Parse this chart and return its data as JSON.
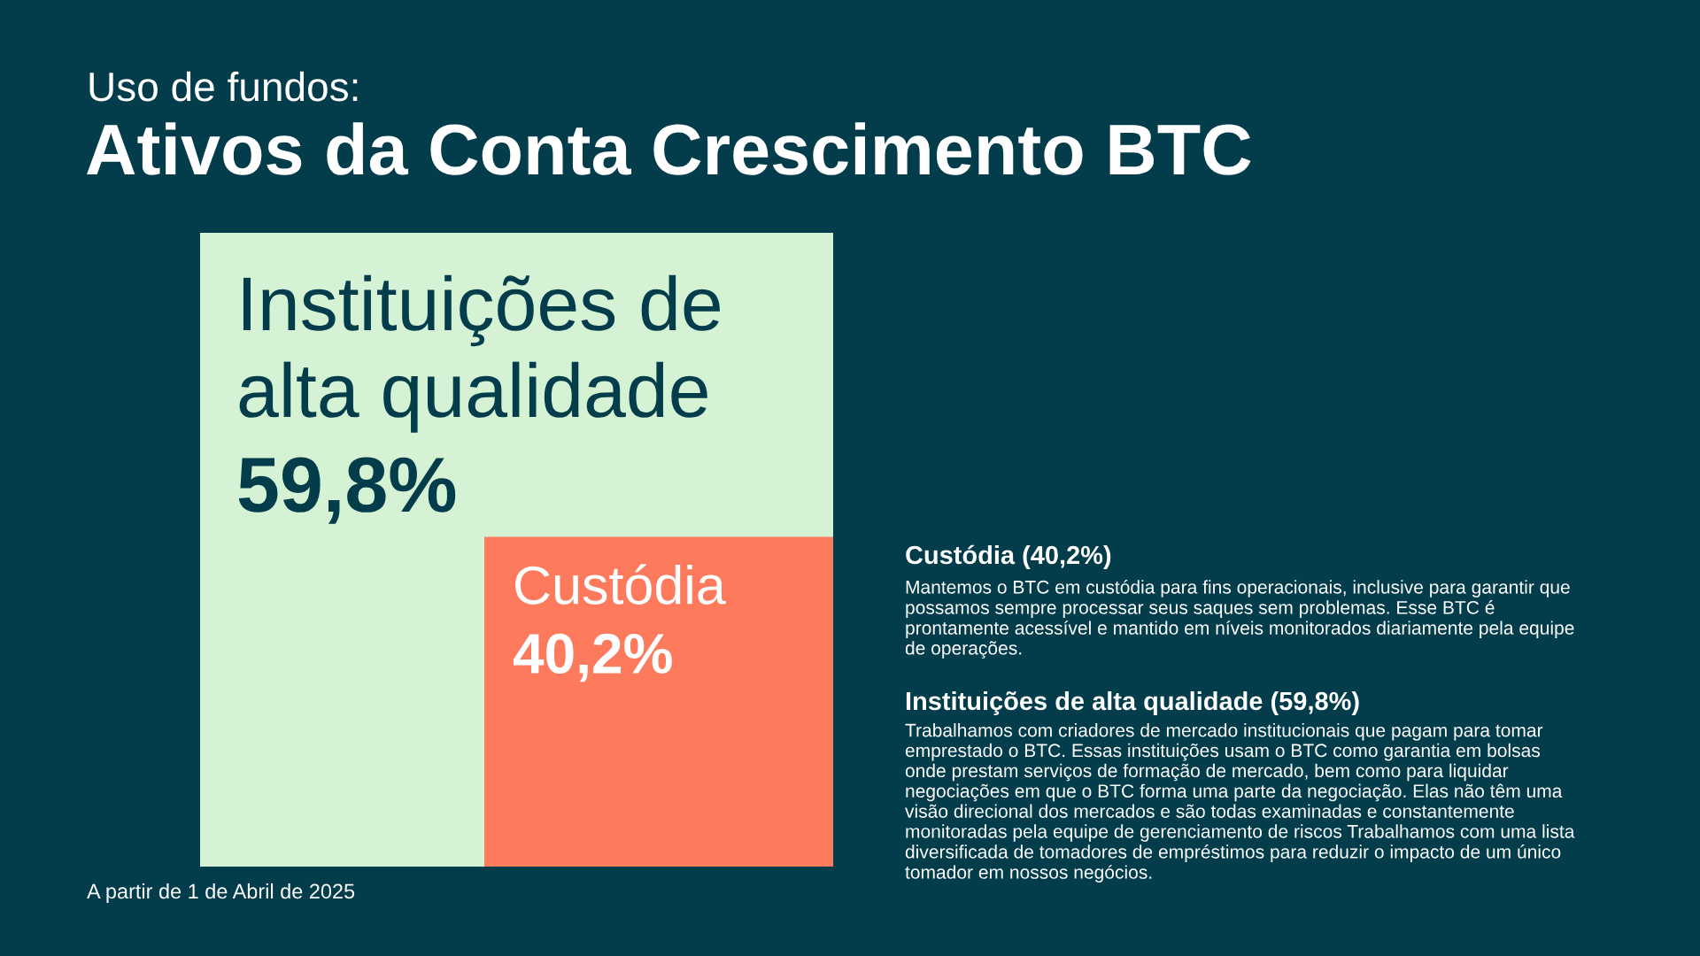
{
  "chart_data": {
    "type": "other",
    "subtitle": "Uso de fundos:",
    "title": "Ativos da Conta Crescimento BTC",
    "categories": [
      "Instituições de alta qualidade",
      "Custódia"
    ],
    "values": [
      59.8,
      40.2
    ],
    "value_labels": [
      "59,8%",
      "40,2%"
    ],
    "colors": [
      "#d5f2d5",
      "#fd7b5c"
    ],
    "annotations": [
      "Custódia (40,2%)",
      "Mantemos o BTC em custódia para fins operacionais, inclusive para garantir que possamos sempre processar seus saques sem problemas. Esse BTC é prontamente acessível e mantido em níveis monitorados diariamente pela equipe de operações.",
      "Instituições de alta qualidade (59,8%)",
      "Trabalhamos com criadores de mercado institucionais que pagam para tomar emprestado o BTC. Essas instituições usam o BTC como garantia em bolsas onde prestam serviços de formação de mercado, bem como para liquidar negociações em que o BTC forma uma parte da negociação. Elas não têm uma visão direcional dos mercados e são todas examinadas e constantemente monitoradas pela equipe de gerenciamento de riscos Trabalhamos com uma lista diversificada de tomadores de empréstimos para reduzir o impacto de um único tomador em nossos negócios.",
      "A partir de 1 de Abril de 2025"
    ]
  }
}
